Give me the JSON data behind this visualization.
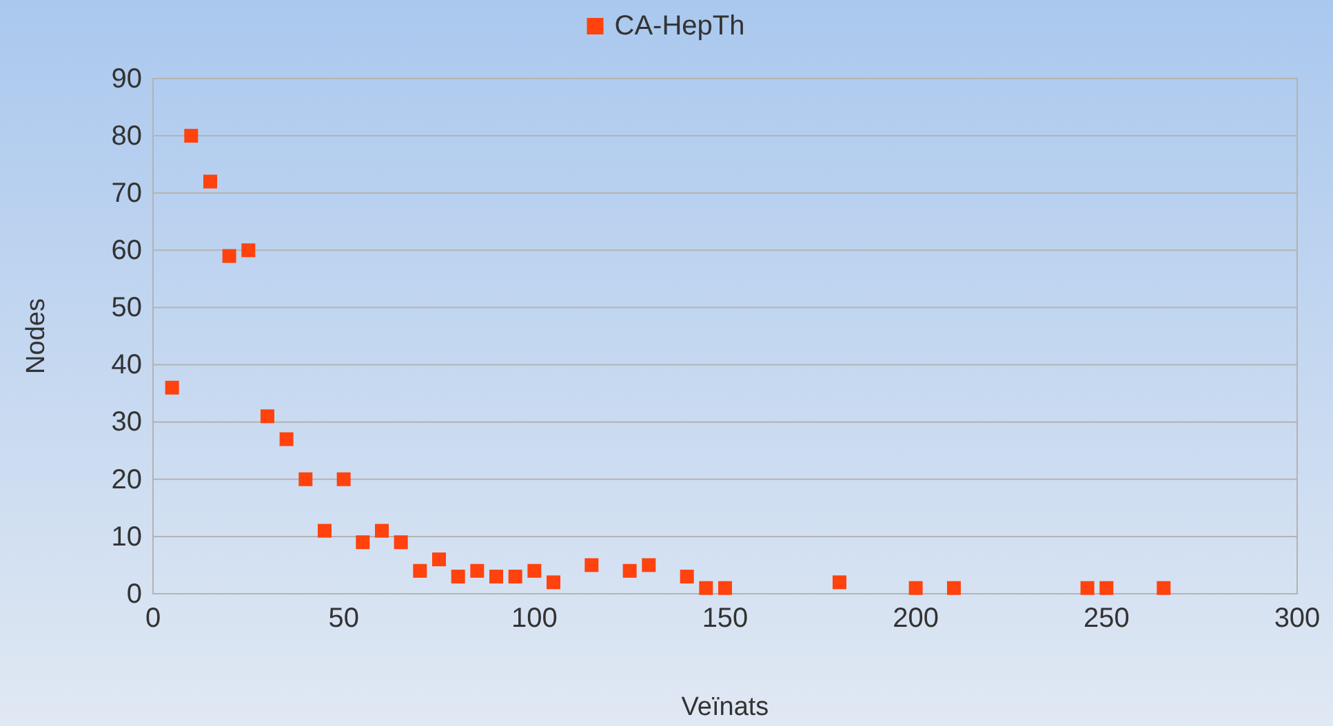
{
  "chart_data": {
    "type": "scatter",
    "xlabel": "Veïnats",
    "ylabel": "Nodes",
    "x": [
      5,
      10,
      15,
      20,
      25,
      30,
      35,
      40,
      45,
      50,
      55,
      60,
      65,
      70,
      75,
      80,
      85,
      90,
      95,
      100,
      105,
      115,
      125,
      130,
      140,
      145,
      150,
      180,
      200,
      210,
      245,
      250,
      265
    ],
    "series": [
      {
        "name": "CA-HepTh",
        "color": "#ff420e",
        "values": [
          36,
          80,
          72,
          59,
          60,
          31,
          27,
          20,
          11,
          20,
          9,
          11,
          9,
          4,
          6,
          3,
          4,
          3,
          3,
          4,
          2,
          5,
          4,
          5,
          3,
          1,
          1,
          2,
          1,
          1,
          1,
          1,
          1
        ]
      }
    ],
    "xlim": [
      0,
      300
    ],
    "xticks": [
      0,
      50,
      100,
      150,
      200,
      250,
      300
    ],
    "ylim": [
      0,
      90
    ],
    "yticks": [
      0,
      10,
      20,
      30,
      40,
      50,
      60,
      70,
      80,
      90
    ],
    "grid": "y",
    "legend": "top",
    "marker": "square"
  }
}
